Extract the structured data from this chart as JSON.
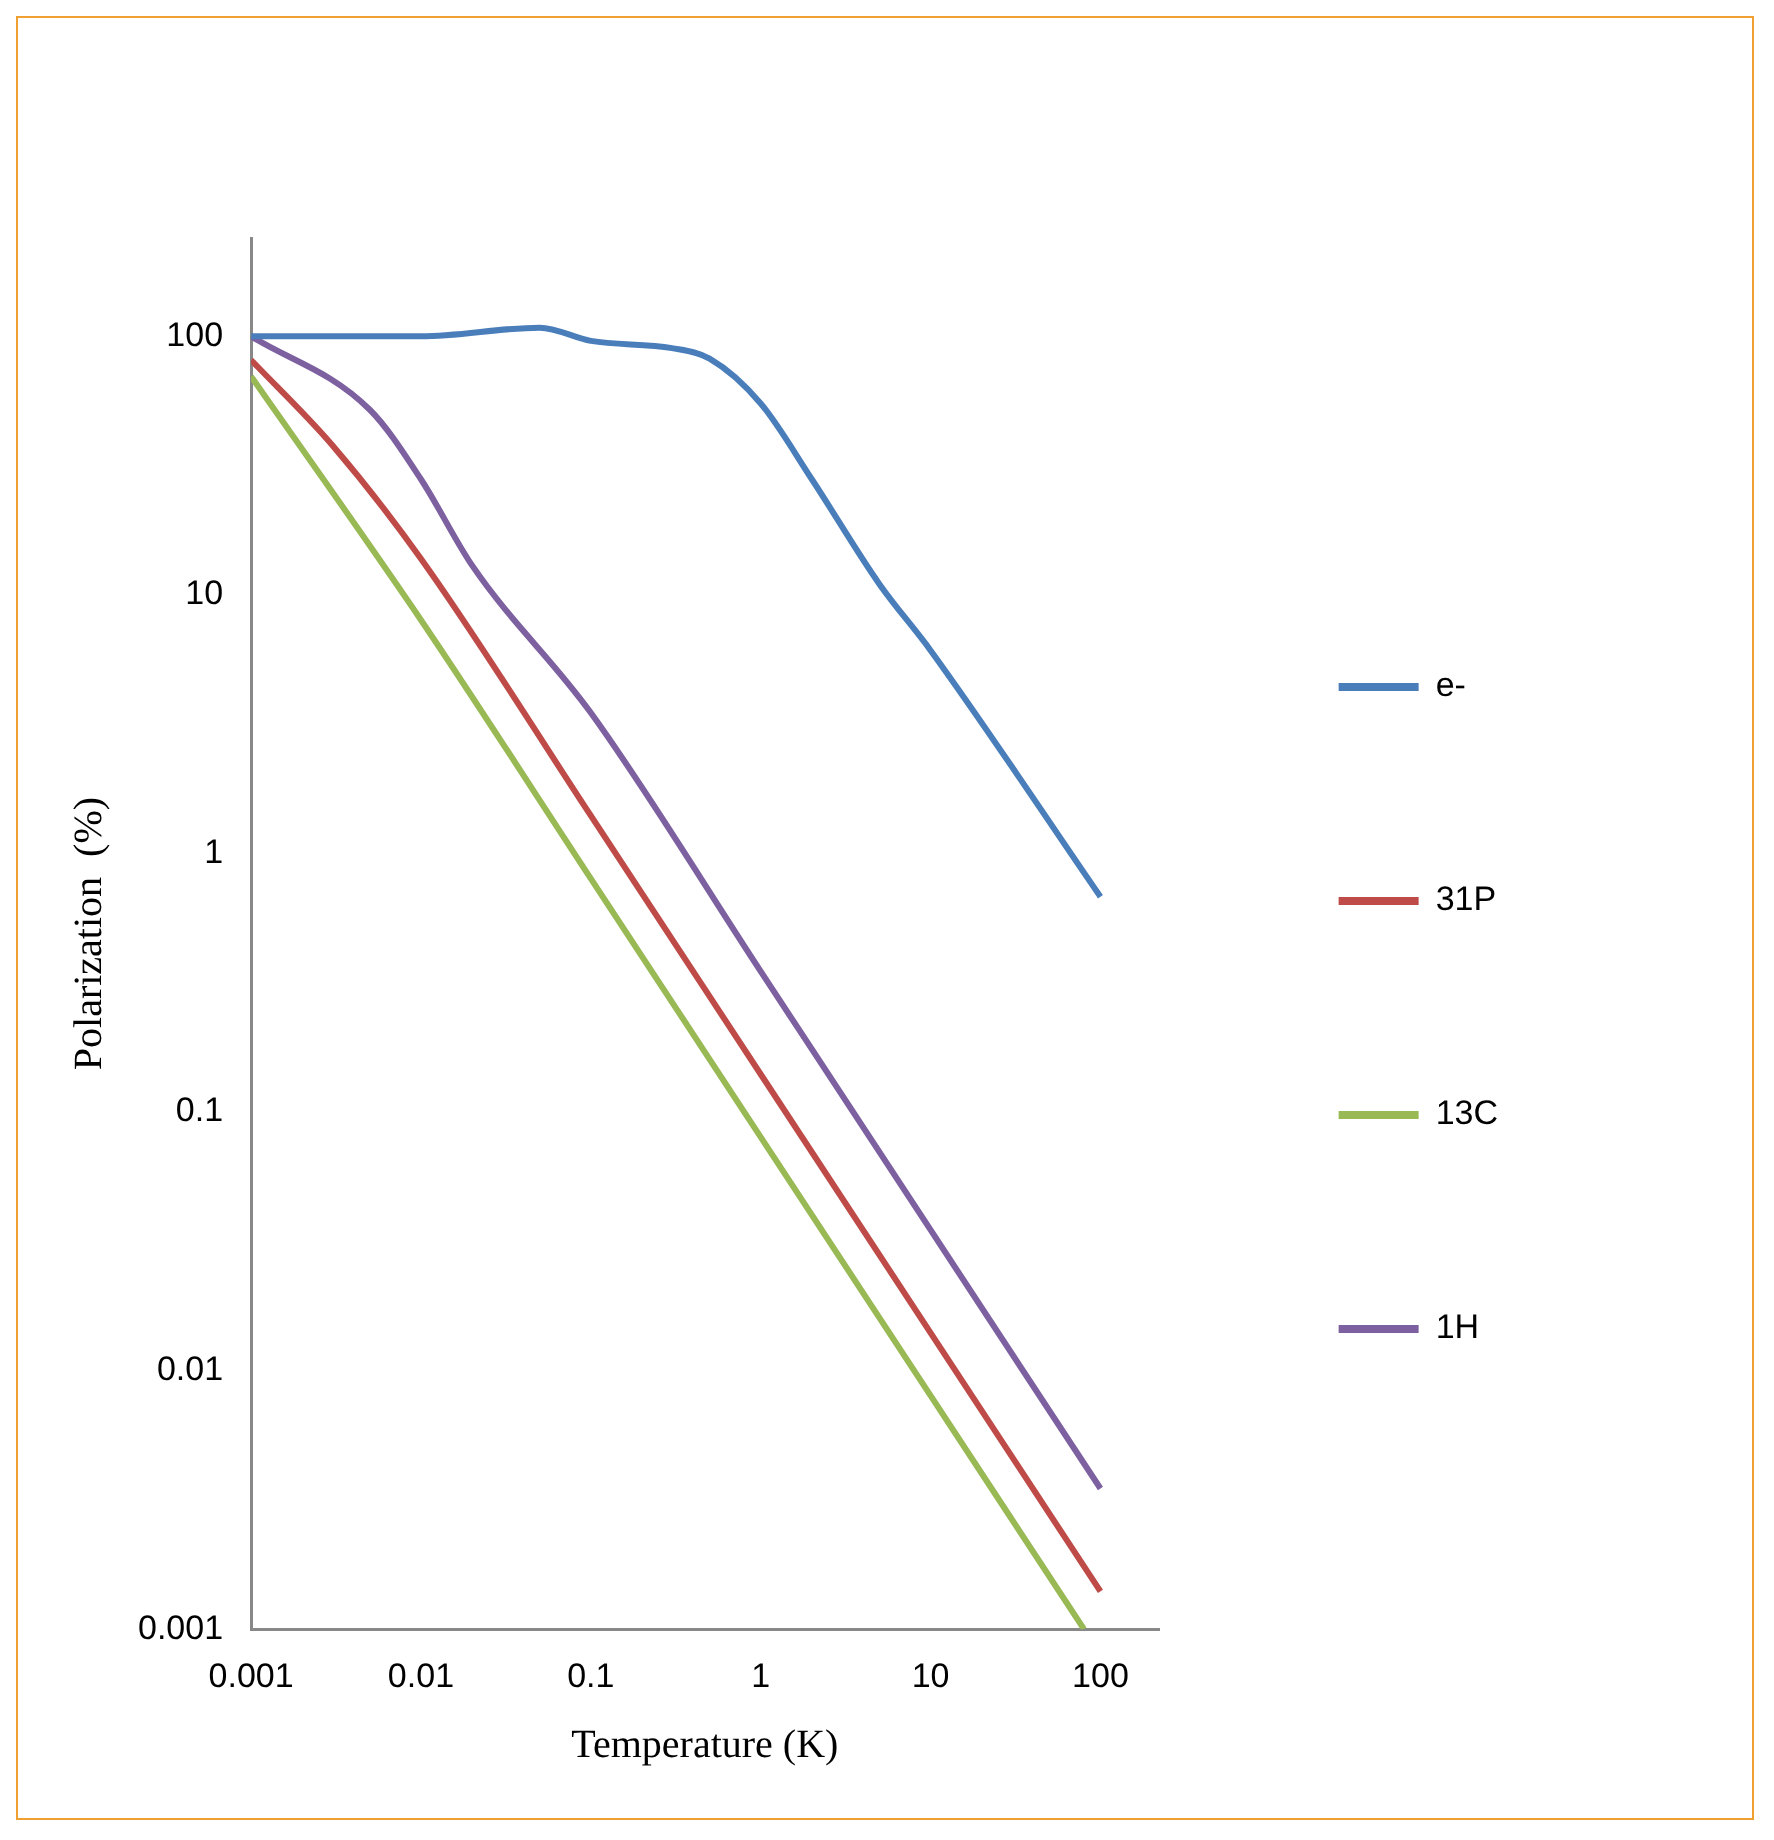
{
  "chart_data": {
    "type": "line",
    "xlabel": "Temperature (K)",
    "ylabel": "Polarization  (%)",
    "log": "xy",
    "grid": false,
    "legend": "right",
    "marker": "none",
    "line_style": "solid",
    "xlim": [
      0.001,
      220
    ],
    "xticks": [
      0.001,
      0.01,
      0.1,
      1,
      10,
      100
    ],
    "ylim": [
      0.001,
      240
    ],
    "yticks": [
      0.001,
      0.01,
      0.1,
      1,
      10,
      100
    ],
    "series": [
      {
        "name": "e-",
        "color": "#4a7ebb",
        "x": [
          0.001,
          0.01,
          0.05,
          0.1,
          0.3,
          0.5,
          1,
          2,
          5,
          10,
          100
        ],
        "values": [
          100,
          100,
          108,
          96,
          90,
          82,
          55,
          28,
          11,
          6.1,
          0.68
        ]
      },
      {
        "name": "31P",
        "color": "#be4b48",
        "x": [
          0.001,
          0.003,
          0.01,
          0.1,
          1,
          10,
          100
        ],
        "values": [
          81,
          38,
          13.8,
          1.4,
          0.14,
          0.014,
          0.0014
        ]
      },
      {
        "name": "13C",
        "color": "#98b954",
        "x": [
          0.001,
          0.01,
          0.1,
          1,
          10,
          80
        ],
        "values": [
          70,
          8,
          0.8,
          0.08,
          0.008,
          0.001
        ]
      },
      {
        "name": "1H",
        "color": "#7d60a0",
        "x": [
          0.001,
          0.005,
          0.01,
          0.02,
          0.1,
          1,
          10,
          100
        ],
        "values": [
          100,
          52,
          28,
          13,
          3.5,
          0.35,
          0.035,
          0.0035
        ]
      }
    ]
  }
}
